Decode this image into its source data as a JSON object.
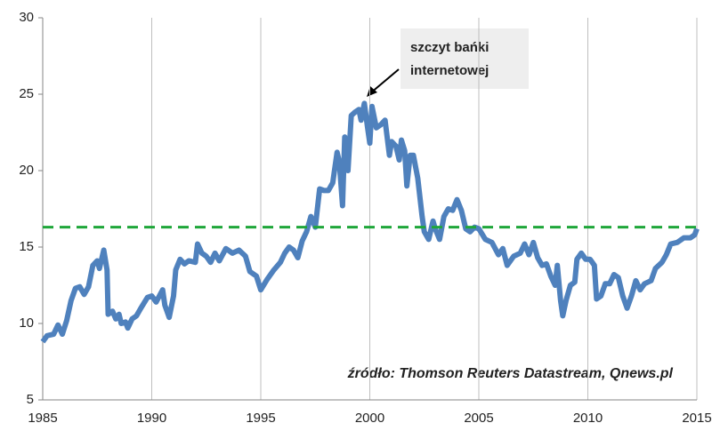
{
  "chart_data": {
    "type": "line",
    "annotation": [
      "szczyt bańki",
      "internetowej"
    ],
    "source": "źródło: Thomson Reuters Datastream, Qnews.pl",
    "x": [
      1985.0,
      1985.2,
      1985.5,
      1985.7,
      1985.9,
      1986.1,
      1986.3,
      1986.5,
      1986.7,
      1986.9,
      1987.1,
      1987.3,
      1987.5,
      1987.6,
      1987.8,
      1987.95,
      1988.0,
      1988.2,
      1988.35,
      1988.5,
      1988.6,
      1988.8,
      1988.9,
      1989.1,
      1989.3,
      1989.5,
      1989.8,
      1990.0,
      1990.2,
      1990.5,
      1990.6,
      1990.8,
      1991.0,
      1991.1,
      1991.3,
      1991.5,
      1991.7,
      1992.0,
      1992.1,
      1992.3,
      1992.5,
      1992.7,
      1992.9,
      1993.1,
      1993.4,
      1993.7,
      1994.0,
      1994.3,
      1994.5,
      1994.8,
      1995.0,
      1995.3,
      1995.6,
      1995.9,
      1996.1,
      1996.3,
      1996.5,
      1996.7,
      1996.9,
      1997.1,
      1997.3,
      1997.5,
      1997.7,
      1997.9,
      1998.1,
      1998.3,
      1998.5,
      1998.6,
      1998.75,
      1998.85,
      1999.0,
      1999.15,
      1999.3,
      1999.5,
      1999.6,
      1999.75,
      1999.9,
      2000.0,
      2000.1,
      2000.3,
      2000.5,
      2000.7,
      2000.9,
      2001.0,
      2001.2,
      2001.35,
      2001.45,
      2001.6,
      2001.7,
      2001.85,
      2002.0,
      2002.2,
      2002.4,
      2002.5,
      2002.7,
      2002.9,
      2003.0,
      2003.2,
      2003.4,
      2003.6,
      2003.8,
      2004.0,
      2004.2,
      2004.4,
      2004.6,
      2004.8,
      2005.0,
      2005.3,
      2005.6,
      2005.9,
      2006.1,
      2006.3,
      2006.6,
      2006.9,
      2007.1,
      2007.3,
      2007.5,
      2007.7,
      2007.9,
      2008.1,
      2008.3,
      2008.5,
      2008.6,
      2008.75,
      2008.85,
      2009.0,
      2009.2,
      2009.4,
      2009.5,
      2009.7,
      2009.9,
      2010.1,
      2010.3,
      2010.4,
      2010.6,
      2010.8,
      2011.0,
      2011.2,
      2011.4,
      2011.6,
      2011.8,
      2012.0,
      2012.2,
      2012.4,
      2012.6,
      2012.9,
      2013.1,
      2013.4,
      2013.6,
      2013.8,
      2014.1,
      2014.4,
      2014.7,
      2014.9,
      2015.0
    ],
    "series": [
      {
        "color": "#4f81bd",
        "values": [
          8.8,
          9.2,
          9.3,
          9.9,
          9.3,
          10.2,
          11.5,
          12.3,
          12.4,
          11.9,
          12.4,
          13.8,
          14.1,
          13.6,
          14.8,
          13.5,
          10.6,
          10.8,
          10.3,
          10.6,
          10.0,
          10.1,
          9.7,
          10.3,
          10.5,
          11.0,
          11.7,
          11.8,
          11.4,
          12.2,
          11.2,
          10.4,
          11.8,
          13.5,
          14.2,
          13.9,
          14.1,
          14.0,
          15.2,
          14.6,
          14.4,
          14.0,
          14.6,
          14.1,
          14.9,
          14.6,
          14.8,
          14.4,
          13.4,
          13.1,
          12.2,
          12.9,
          13.5,
          14.0,
          14.6,
          15.0,
          14.8,
          14.3,
          15.4,
          16.0,
          17.0,
          16.3,
          18.8,
          18.7,
          18.7,
          19.2,
          21.2,
          20.6,
          17.7,
          22.2,
          20.0,
          23.6,
          23.8,
          24.0,
          23.3,
          24.4,
          22.8,
          21.8,
          24.2,
          22.8,
          23.0,
          23.3,
          21.0,
          21.9,
          21.6,
          20.7,
          22.0,
          21.3,
          19.0,
          21.0,
          21.0,
          19.5,
          17.0,
          16.0,
          15.5,
          16.7,
          16.2,
          15.5,
          17.0,
          17.5,
          17.4,
          18.1,
          17.4,
          16.2,
          16.0,
          16.3,
          16.2,
          15.5,
          15.3,
          14.5,
          14.9,
          13.8,
          14.4,
          14.6,
          15.2,
          14.5,
          15.3,
          14.3,
          13.8,
          13.9,
          13.1,
          12.5,
          13.8,
          11.5,
          10.5,
          11.5,
          12.5,
          12.7,
          14.2,
          14.6,
          14.2,
          14.2,
          13.8,
          11.6,
          11.8,
          12.6,
          12.6,
          13.2,
          13.0,
          11.8,
          11.0,
          11.8,
          12.8,
          12.2,
          12.6,
          12.8,
          13.6,
          14.0,
          14.5,
          15.2,
          15.3,
          15.6,
          15.6,
          15.8,
          16.2
        ]
      }
    ],
    "reference_line": {
      "value": 16.3,
      "color": "#1fa63a"
    },
    "xlim": [
      1985,
      2015
    ],
    "xticks": [
      1985,
      1990,
      1995,
      2000,
      2005,
      2010,
      2015
    ],
    "ylim": [
      5,
      30
    ],
    "yticks": [
      5,
      10,
      15,
      20,
      25,
      30
    ],
    "grid": "x"
  }
}
